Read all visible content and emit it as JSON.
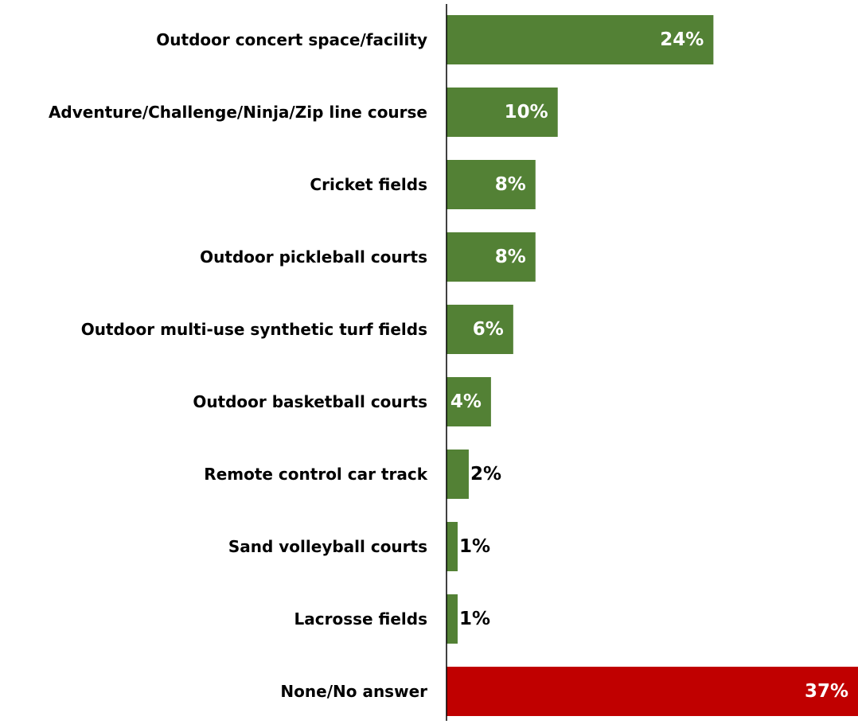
{
  "chart_data": {
    "type": "bar",
    "orientation": "horizontal",
    "title": "",
    "xlabel": "",
    "ylabel": "",
    "categories": [
      "Outdoor concert space/facility",
      "Adventure/Challenge/Ninja/Zip line course",
      "Cricket fields",
      "Outdoor pickleball courts",
      "Outdoor multi-use synthetic turf fields",
      "Outdoor basketball courts",
      "Remote control car track",
      "Sand volleyball courts",
      "Lacrosse fields",
      "None/No answer"
    ],
    "values": [
      24,
      10,
      8,
      8,
      6,
      4,
      2,
      1,
      1,
      37
    ],
    "data_labels": [
      "24%",
      "10%",
      "8%",
      "8%",
      "6%",
      "4%",
      "2%",
      "1%",
      "1%",
      "37%"
    ],
    "value_unit": "%",
    "xlim": [
      0,
      37
    ],
    "bar_colors": [
      "#538135",
      "#538135",
      "#538135",
      "#538135",
      "#538135",
      "#538135",
      "#538135",
      "#538135",
      "#538135",
      "#c00000"
    ],
    "grid": false,
    "legend": "none"
  }
}
